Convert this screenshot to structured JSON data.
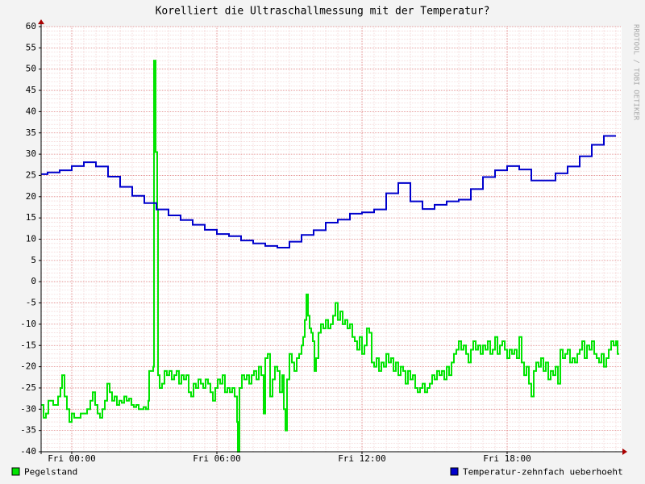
{
  "chart_data": {
    "type": "line",
    "title": "Korelliert die Ultraschallmessung mit der Temperatur?",
    "watermark": "RRDTOOL / TOBI OETIKER",
    "step": true,
    "grid": true,
    "legend": "bottom",
    "xlim": [
      -76,
      1364
    ],
    "xticks": [
      {
        "value": 0,
        "label": "Fri 00:00"
      },
      {
        "value": 360,
        "label": "Fri 06:00"
      },
      {
        "value": 720,
        "label": "Fri 12:00"
      },
      {
        "value": 1080,
        "label": "Fri 18:00"
      }
    ],
    "ylim": [
      -40,
      60
    ],
    "yticks": [
      -40,
      -35,
      -30,
      -25,
      -20,
      -15,
      -10,
      -5,
      0,
      5,
      10,
      15,
      20,
      25,
      30,
      35,
      40,
      45,
      50,
      55,
      60
    ],
    "series": [
      {
        "name": "Pegelstand",
        "color": "#00e400",
        "x": [
          -76,
          -70,
          -64,
          -58,
          -46,
          -34,
          -28,
          -24,
          -18,
          -12,
          -6,
          0,
          6,
          14,
          22,
          30,
          38,
          46,
          52,
          58,
          64,
          70,
          76,
          82,
          88,
          94,
          100,
          106,
          112,
          118,
          124,
          130,
          136,
          142,
          148,
          154,
          160,
          166,
          172,
          178,
          184,
          190,
          192,
          198,
          202,
          204,
          208,
          212,
          214,
          218,
          224,
          230,
          236,
          242,
          248,
          254,
          260,
          266,
          272,
          278,
          284,
          290,
          296,
          302,
          308,
          314,
          320,
          326,
          332,
          338,
          344,
          350,
          356,
          362,
          368,
          374,
          380,
          386,
          392,
          398,
          404,
          410,
          412,
          416,
          422,
          428,
          434,
          440,
          446,
          452,
          458,
          464,
          470,
          476,
          480,
          486,
          492,
          498,
          504,
          510,
          516,
          522,
          526,
          530,
          534,
          540,
          546,
          552,
          558,
          564,
          570,
          574,
          578,
          582,
          586,
          590,
          594,
          598,
          602,
          606,
          612,
          618,
          624,
          630,
          636,
          642,
          648,
          654,
          660,
          666,
          672,
          678,
          684,
          690,
          696,
          702,
          708,
          714,
          720,
          726,
          732,
          738,
          744,
          750,
          756,
          762,
          768,
          774,
          780,
          786,
          792,
          798,
          804,
          810,
          816,
          822,
          828,
          834,
          840,
          846,
          852,
          858,
          864,
          870,
          876,
          882,
          888,
          894,
          900,
          906,
          912,
          918,
          924,
          930,
          936,
          942,
          948,
          954,
          960,
          966,
          972,
          978,
          984,
          990,
          996,
          1002,
          1008,
          1014,
          1020,
          1026,
          1032,
          1038,
          1044,
          1050,
          1056,
          1062,
          1068,
          1074,
          1080,
          1086,
          1092,
          1098,
          1104,
          1110,
          1116,
          1122,
          1128,
          1134,
          1140,
          1146,
          1152,
          1158,
          1164,
          1170,
          1176,
          1182,
          1188,
          1194,
          1200,
          1206,
          1212,
          1218,
          1224,
          1230,
          1236,
          1242,
          1248,
          1254,
          1260,
          1266,
          1272,
          1278,
          1284,
          1290,
          1296,
          1302,
          1308,
          1314,
          1320,
          1326,
          1332,
          1338,
          1344,
          1350,
          1354
        ],
        "values": [
          -29,
          -32,
          -31,
          -28,
          -29,
          -27,
          -25,
          -22,
          -27,
          -30,
          -33,
          -31,
          -32,
          -32,
          -31,
          -31,
          -30,
          -28,
          -26,
          -29,
          -31,
          -32,
          -30,
          -28,
          -24,
          -26,
          -28,
          -27,
          -29,
          -28,
          -28.5,
          -27,
          -28,
          -27.5,
          -29,
          -29.5,
          -29,
          -30,
          -30,
          -29.5,
          -30,
          -28,
          -21,
          -21,
          -20,
          52,
          30.5,
          17,
          -22,
          -25,
          -24,
          -21,
          -22,
          -21,
          -23,
          -22,
          -21,
          -24,
          -22,
          -23,
          -22,
          -26,
          -27,
          -24,
          -25,
          -23,
          -24,
          -25,
          -23,
          -24,
          -26,
          -28,
          -25,
          -23,
          -24,
          -22,
          -26,
          -25,
          -26,
          -25,
          -27,
          -33,
          -40,
          -25,
          -22,
          -23,
          -22,
          -24,
          -22,
          -21,
          -23,
          -20,
          -22,
          -31,
          -18,
          -17,
          -27,
          -23,
          -20,
          -21,
          -26,
          -22,
          -30,
          -35,
          -23,
          -17,
          -19,
          -21,
          -18,
          -17,
          -15,
          -13,
          -9,
          -3,
          -8,
          -11,
          -12,
          -14,
          -21,
          -18,
          -12,
          -10,
          -11,
          -9,
          -11,
          -10,
          -8,
          -5,
          -9,
          -7,
          -10,
          -9,
          -11,
          -10,
          -13,
          -14,
          -16,
          -13,
          -17,
          -15,
          -11,
          -12,
          -19,
          -20,
          -18,
          -21,
          -19,
          -20,
          -17,
          -19,
          -18,
          -21,
          -19,
          -22,
          -20,
          -21,
          -24,
          -21,
          -23,
          -22,
          -25,
          -26,
          -25,
          -24,
          -26,
          -25,
          -24,
          -22,
          -23,
          -21,
          -22,
          -21,
          -23,
          -20,
          -22,
          -19,
          -17,
          -16,
          -14,
          -16,
          -15,
          -17,
          -19,
          -16,
          -14,
          -16,
          -15,
          -17,
          -15,
          -16,
          -14,
          -17,
          -16,
          -13,
          -17,
          -15,
          -14,
          -16,
          -18,
          -16,
          -17,
          -16,
          -18,
          -13,
          -19,
          -22,
          -20,
          -24,
          -27,
          -21,
          -19,
          -20,
          -18,
          -21,
          -19,
          -23,
          -21,
          -22,
          -20,
          -24,
          -16,
          -18,
          -17,
          -16,
          -19,
          -18,
          -19,
          -17,
          -16,
          -14,
          -18,
          -15,
          -16,
          -14,
          -17,
          -18,
          -19,
          -17,
          -20,
          -18,
          -16,
          -14,
          -15,
          -14,
          -17
        ]
      },
      {
        "name": "Temperatur-zehnfach ueberhoeht",
        "color": "#0000cc",
        "x": [
          -76,
          -60,
          -30,
          0,
          30,
          60,
          90,
          120,
          150,
          180,
          210,
          240,
          270,
          300,
          330,
          360,
          390,
          420,
          450,
          480,
          510,
          540,
          570,
          600,
          630,
          660,
          690,
          720,
          750,
          780,
          810,
          840,
          870,
          900,
          930,
          960,
          990,
          1020,
          1050,
          1080,
          1110,
          1140,
          1170,
          1200,
          1230,
          1260,
          1290,
          1320
        ],
        "values": [
          25.3,
          25.7,
          26.2,
          27.2,
          28.1,
          27.1,
          24.7,
          22.3,
          20.2,
          18.5,
          17.0,
          15.6,
          14.5,
          13.4,
          12.2,
          11.2,
          10.7,
          9.7,
          9.0,
          8.4,
          8.0,
          9.4,
          11.0,
          12.1,
          13.9,
          14.6,
          16.0,
          16.3,
          17.0,
          20.8,
          23.2,
          18.9,
          17.1,
          18.1,
          18.9,
          19.3,
          21.8,
          24.6,
          26.2,
          27.2,
          26.4,
          23.8,
          23.8,
          25.5,
          27.1,
          29.5,
          32.2,
          34.3
        ]
      }
    ]
  }
}
